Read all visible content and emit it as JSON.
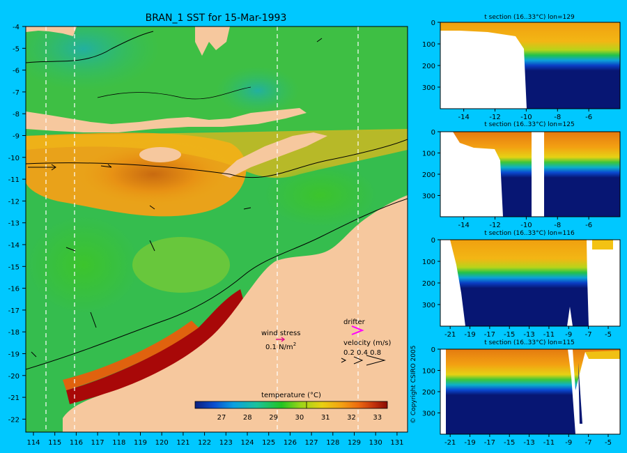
{
  "map": {
    "title": "BRAN_1 SST for 15-Mar-1993",
    "lon_ticks": [
      "114",
      "115",
      "116",
      "117",
      "118",
      "119",
      "120",
      "121",
      "122",
      "123",
      "124",
      "125",
      "126",
      "127",
      "128",
      "129",
      "130",
      "131"
    ],
    "lat_ticks": [
      "-4",
      "-5",
      "-6",
      "-7",
      "-8",
      "-9",
      "-10",
      "-11",
      "-12",
      "-13",
      "-14",
      "-15",
      "-16",
      "-17",
      "-18",
      "-19",
      "-20",
      "-21",
      "-22"
    ],
    "legend": {
      "wind_stress_label": "wind stress",
      "wind_stress_value": "0.1 N/m",
      "wind_stress_exp": "2",
      "drifter_label": "drifter",
      "velocity_label": "velocity (m/s)",
      "velocity_values": "0.2 0.4 0.8"
    },
    "colorbar": {
      "label": "temperature (°C)",
      "ticks": [
        "27",
        "28",
        "29",
        "30",
        "31",
        "32",
        "33"
      ],
      "colors": [
        "#0c1f7d",
        "#0a4ecf",
        "#0a9fe0",
        "#1bc29c",
        "#22c322",
        "#9bd518",
        "#e8d011",
        "#f3a212",
        "#ec6a10",
        "#c2320c",
        "#8a0b04"
      ]
    },
    "colors": {
      "background": "#00c8ff",
      "land": "#f6c89e",
      "warm_water": "#e07a10",
      "cool_water": "#2bb04a",
      "hot_coast": "#a00808"
    }
  },
  "copyright": "© Copyright CSIRO 2005",
  "sections": [
    {
      "title": "t section (16..33°C) lon=129",
      "x_ticks": [
        "-14",
        "-12",
        "-10",
        "-8",
        "-6"
      ],
      "y_ticks": [
        "0",
        "100",
        "200",
        "300"
      ]
    },
    {
      "title": "t section (16..33°C) lon=125",
      "x_ticks": [
        "-14",
        "-12",
        "-10",
        "-8",
        "-6"
      ],
      "y_ticks": [
        "0",
        "100",
        "200",
        "300"
      ]
    },
    {
      "title": "t section (16..33°C) lon=116",
      "x_ticks": [
        "-21",
        "-19",
        "-17",
        "-15",
        "-13",
        "-11",
        "-9",
        "-7",
        "-5"
      ],
      "y_ticks": [
        "0",
        "100",
        "200",
        "300"
      ]
    },
    {
      "title": "t section (16..33°C) lon=115",
      "x_ticks": [
        "-21",
        "-19",
        "-17",
        "-15",
        "-13",
        "-11",
        "-9",
        "-7",
        "-5"
      ],
      "y_ticks": [
        "0",
        "100",
        "200",
        "300"
      ]
    }
  ]
}
